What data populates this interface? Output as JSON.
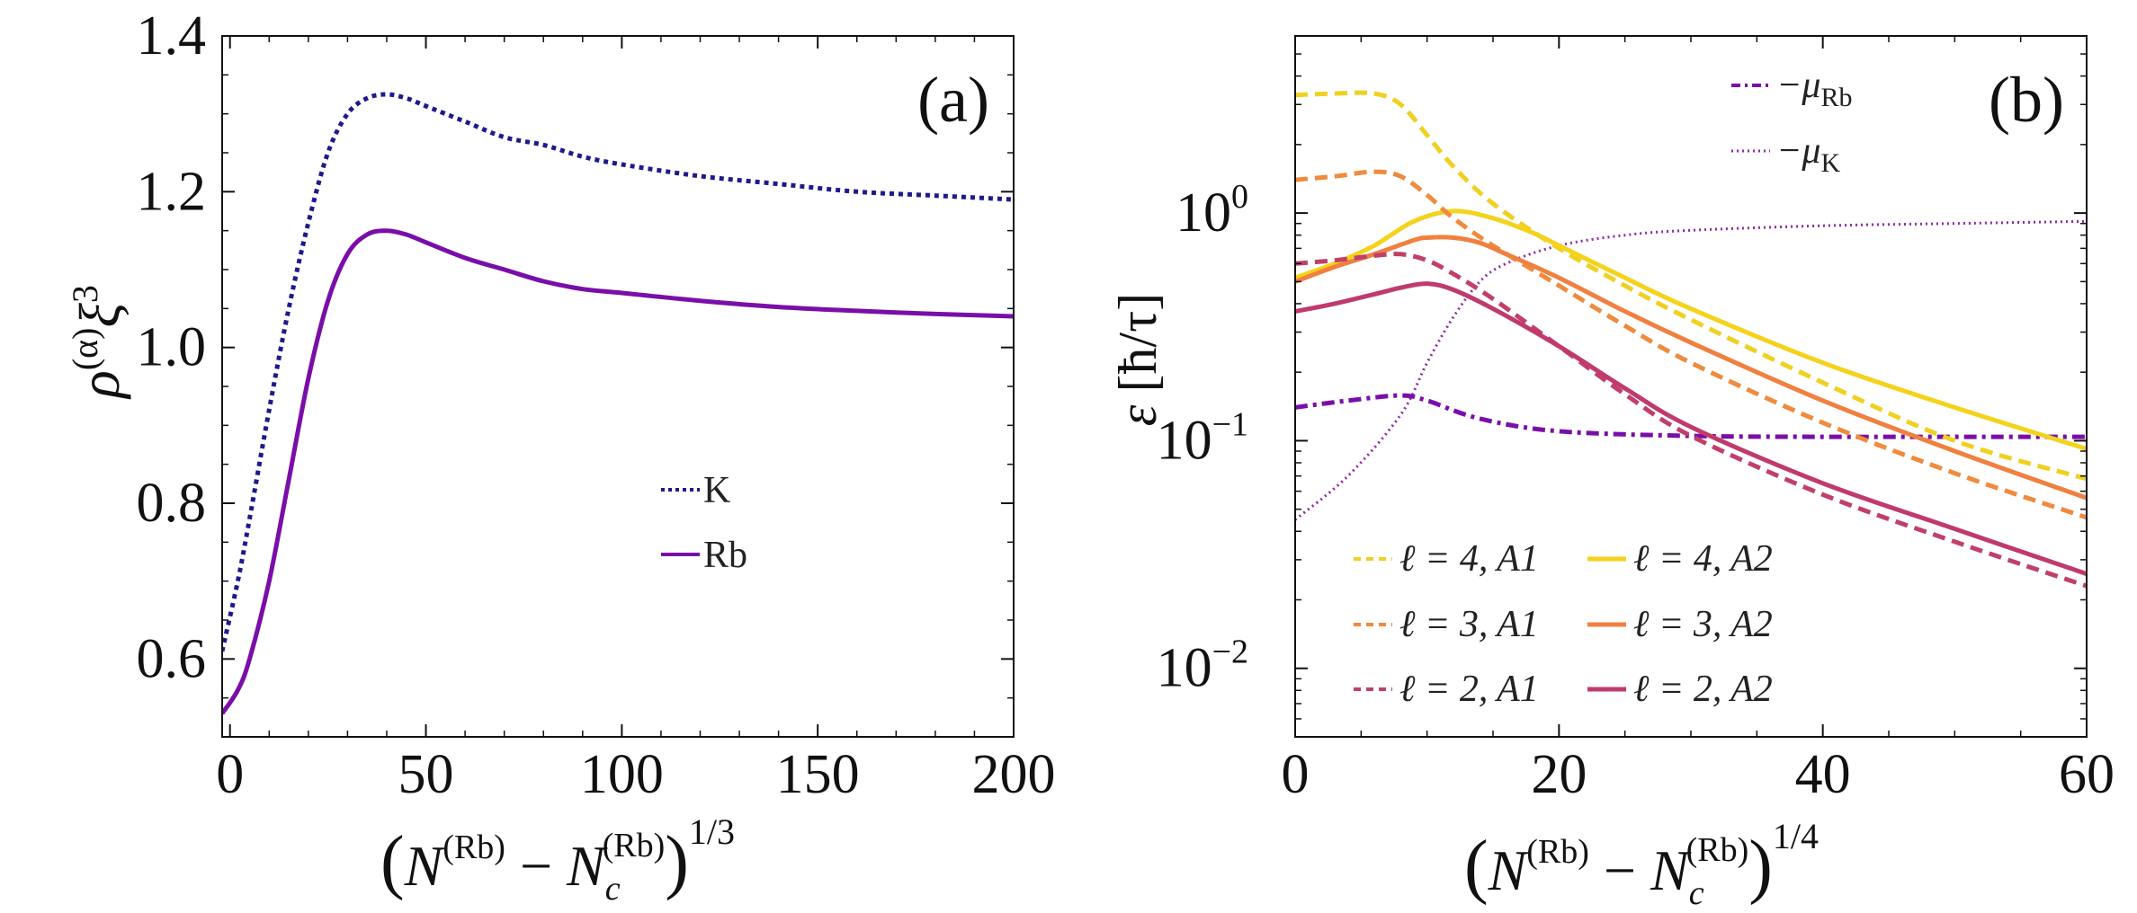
{
  "chart_data": [
    {
      "id": "panel-a",
      "type": "line",
      "panel_label": "(a)",
      "xlabel": "(N(Rb) − Nc(Rb))1/3",
      "xlabel_parts": {
        "open": "(",
        "N": "N",
        "sup1": "(Rb)",
        "minus": "−",
        "Nc": "N",
        "sub": "c",
        "sup2": "(Rb)",
        "close": ")",
        "pow": "1/3"
      },
      "ylabel": "ρ(α)ξ3",
      "ylabel_parts": {
        "rho": "ρ",
        "alpha": "(α)",
        "xi": "ξ",
        "pow": "3"
      },
      "xlim": [
        -2,
        200
      ],
      "ylim": [
        0.5,
        1.4
      ],
      "xticks": [
        0,
        50,
        100,
        150,
        200
      ],
      "xtick_labels": [
        "0",
        "50",
        "100",
        "150",
        "200"
      ],
      "yticks": [
        0.6,
        0.8,
        1.0,
        1.2,
        1.4
      ],
      "ytick_labels": [
        "0.6",
        "0.8",
        "1.0",
        "1.2",
        "1.4"
      ],
      "legend_position": "center-right",
      "series": [
        {
          "name": "K",
          "color": "#1f1a8a",
          "dash": "dotted",
          "x": [
            -2,
            2,
            5,
            10,
            15,
            20,
            25,
            30,
            35,
            40,
            45,
            50,
            60,
            70,
            80,
            90,
            100,
            120,
            140,
            160,
            180,
            200
          ],
          "y": [
            0.61,
            0.7,
            0.78,
            0.92,
            1.05,
            1.16,
            1.25,
            1.3,
            1.32,
            1.325,
            1.32,
            1.31,
            1.29,
            1.27,
            1.26,
            1.245,
            1.235,
            1.22,
            1.21,
            1.2,
            1.195,
            1.19
          ]
        },
        {
          "name": "Rb",
          "color": "#7a0ea8",
          "dash": "solid",
          "x": [
            -2,
            2,
            5,
            10,
            15,
            20,
            25,
            30,
            35,
            40,
            45,
            50,
            60,
            70,
            80,
            90,
            100,
            120,
            140,
            160,
            180,
            200
          ],
          "y": [
            0.53,
            0.56,
            0.6,
            0.7,
            0.83,
            0.96,
            1.06,
            1.12,
            1.145,
            1.15,
            1.145,
            1.135,
            1.115,
            1.1,
            1.085,
            1.075,
            1.07,
            1.06,
            1.052,
            1.047,
            1.043,
            1.04
          ]
        }
      ]
    },
    {
      "id": "panel-b",
      "type": "line",
      "yscale": "log",
      "panel_label": "(b)",
      "xlabel": "(N(Rb) − Nc(Rb))1/4",
      "xlabel_parts": {
        "open": "(",
        "N": "N",
        "sup1": "(Rb)",
        "minus": "−",
        "Nc": "N",
        "sub": "c",
        "sup2": "(Rb)",
        "close": ")",
        "pow": "1/4"
      },
      "ylabel": "ε [ħ/τ]",
      "ylabel_parts": {
        "eps": "ε",
        "unit": "[ħ/τ]"
      },
      "xlim": [
        0,
        60
      ],
      "ylim": [
        0.005,
        6
      ],
      "xticks": [
        0,
        20,
        40,
        60
      ],
      "xtick_labels": [
        "0",
        "20",
        "40",
        "60"
      ],
      "yticks": [
        0.01,
        0.1,
        1
      ],
      "ytick_labels": [
        {
          "base": "10",
          "exp": "−2"
        },
        {
          "base": "10",
          "exp": "−1"
        },
        {
          "base": "10",
          "exp": "0"
        }
      ],
      "legend_position": "bottom-left and top-right",
      "series": [
        {
          "name": "−μRb",
          "label_main": "−μ",
          "label_sub": "Rb",
          "color": "#7a0ea8",
          "dash": "dashdot",
          "x": [
            0,
            4,
            8,
            10,
            14,
            20,
            30,
            40,
            50,
            60
          ],
          "y": [
            0.14,
            0.15,
            0.158,
            0.15,
            0.125,
            0.11,
            0.105,
            0.104,
            0.104,
            0.104
          ]
        },
        {
          "name": "−μK",
          "label_main": "−μ",
          "label_sub": "K",
          "color": "#8b2aa8",
          "dash": "dotted",
          "x": [
            0,
            4,
            8,
            10,
            12,
            14,
            16,
            20,
            25,
            30,
            40,
            50,
            60
          ],
          "y": [
            0.045,
            0.07,
            0.13,
            0.22,
            0.35,
            0.5,
            0.6,
            0.72,
            0.8,
            0.84,
            0.88,
            0.9,
            0.92
          ]
        },
        {
          "name": "ℓ = 4, A1",
          "color": "#f0d020",
          "dash": "dashed",
          "x": [
            0,
            3,
            6,
            8,
            10,
            12,
            15,
            20,
            25,
            30,
            40,
            50,
            60
          ],
          "y": [
            3.3,
            3.35,
            3.35,
            3.0,
            2.2,
            1.6,
            1.1,
            0.7,
            0.48,
            0.34,
            0.18,
            0.1,
            0.068
          ]
        },
        {
          "name": "ℓ = 4, A2",
          "color": "#f5d21c",
          "dash": "solid",
          "x": [
            0,
            3,
            6,
            9,
            12,
            15,
            18,
            20,
            25,
            30,
            40,
            50,
            60
          ],
          "y": [
            0.52,
            0.6,
            0.72,
            0.92,
            1.02,
            0.95,
            0.82,
            0.72,
            0.52,
            0.38,
            0.22,
            0.14,
            0.092
          ]
        },
        {
          "name": "ℓ = 3, A1",
          "color": "#f08a3c",
          "dash": "dashed",
          "x": [
            0,
            3,
            6,
            8,
            10,
            12,
            15,
            20,
            25,
            30,
            40,
            50,
            60
          ],
          "y": [
            1.4,
            1.45,
            1.52,
            1.45,
            1.2,
            0.95,
            0.72,
            0.48,
            0.32,
            0.22,
            0.12,
            0.072,
            0.046
          ]
        },
        {
          "name": "ℓ = 3, A2",
          "color": "#f08040",
          "dash": "solid",
          "x": [
            0,
            3,
            6,
            9,
            10,
            12,
            14,
            16,
            20,
            25,
            30,
            40,
            50,
            60
          ],
          "y": [
            0.5,
            0.58,
            0.66,
            0.76,
            0.78,
            0.78,
            0.74,
            0.66,
            0.52,
            0.37,
            0.27,
            0.15,
            0.09,
            0.056
          ]
        },
        {
          "name": "ℓ = 2, A1",
          "color": "#c0406a",
          "dash": "dashed",
          "x": [
            0,
            3,
            6,
            8,
            10,
            12,
            15,
            20,
            25,
            30,
            40,
            50,
            60
          ],
          "y": [
            0.6,
            0.62,
            0.65,
            0.66,
            0.62,
            0.54,
            0.42,
            0.26,
            0.16,
            0.105,
            0.058,
            0.036,
            0.023
          ]
        },
        {
          "name": "ℓ = 2, A2",
          "color": "#c03a6e",
          "dash": "solid",
          "x": [
            0,
            3,
            6,
            8,
            10,
            12,
            15,
            20,
            25,
            30,
            40,
            50,
            60
          ],
          "y": [
            0.37,
            0.4,
            0.44,
            0.47,
            0.49,
            0.46,
            0.38,
            0.26,
            0.17,
            0.115,
            0.065,
            0.041,
            0.026
          ]
        }
      ]
    }
  ]
}
